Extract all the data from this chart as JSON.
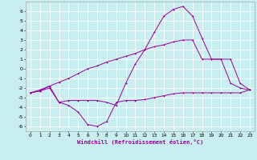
{
  "background_color": "#c8eef0",
  "grid_color": "#ffffff",
  "line_color": "#990099",
  "xlabel": "Windchill (Refroidissement éolien,°C)",
  "xlim": [
    -0.5,
    23.5
  ],
  "ylim": [
    -6.5,
    7.0
  ],
  "xticks": [
    0,
    1,
    2,
    3,
    4,
    5,
    6,
    7,
    8,
    9,
    10,
    11,
    12,
    13,
    14,
    15,
    16,
    17,
    18,
    19,
    20,
    21,
    22,
    23
  ],
  "yticks": [
    -6,
    -5,
    -4,
    -3,
    -2,
    -1,
    0,
    1,
    2,
    3,
    4,
    5,
    6
  ],
  "series1_x": [
    0,
    1,
    2,
    3,
    4,
    5,
    6,
    7,
    8,
    9,
    10,
    11,
    12,
    13,
    14,
    15,
    16,
    17,
    18,
    19,
    20,
    21,
    22,
    23
  ],
  "series1_y": [
    -2.5,
    -2.3,
    -1.8,
    -3.5,
    -3.8,
    -4.5,
    -5.8,
    -6.0,
    -5.5,
    -3.5,
    -3.3,
    -3.3,
    -3.2,
    -3.0,
    -2.8,
    -2.6,
    -2.5,
    -2.5,
    -2.5,
    -2.5,
    -2.5,
    -2.5,
    -2.5,
    -2.2
  ],
  "series2_x": [
    0,
    1,
    2,
    3,
    4,
    5,
    6,
    7,
    8,
    9,
    10,
    11,
    12,
    13,
    14,
    15,
    16,
    17,
    18,
    19,
    20,
    21,
    22,
    23
  ],
  "series2_y": [
    -2.5,
    -2.2,
    -1.8,
    -1.4,
    -1.0,
    -0.5,
    0.0,
    0.3,
    0.7,
    1.0,
    1.3,
    1.6,
    2.0,
    2.3,
    2.5,
    2.8,
    3.0,
    3.0,
    1.0,
    1.0,
    1.0,
    1.0,
    -1.5,
    -2.2
  ],
  "series3_x": [
    0,
    1,
    2,
    3,
    4,
    5,
    6,
    7,
    8,
    9,
    10,
    11,
    12,
    13,
    14,
    15,
    16,
    17,
    18,
    19,
    20,
    21,
    22,
    23
  ],
  "series3_y": [
    -2.5,
    -2.3,
    -2.0,
    -3.5,
    -3.3,
    -3.3,
    -3.3,
    -3.3,
    -3.5,
    -3.8,
    -1.5,
    0.5,
    2.0,
    3.8,
    5.5,
    6.2,
    6.5,
    5.5,
    3.2,
    1.0,
    1.0,
    -1.5,
    -2.0,
    -2.2
  ]
}
